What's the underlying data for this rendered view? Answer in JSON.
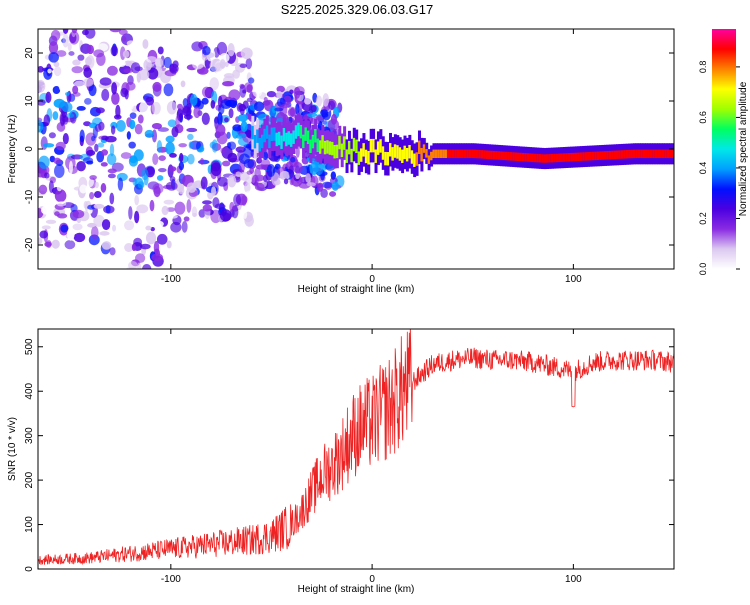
{
  "title": "S225.2025.329.06.03.G17",
  "chart_data": [
    {
      "type": "heatmap",
      "xlabel": "Height of straight line (km)",
      "ylabel": "Frequency (Hz)",
      "xlim": [
        -166,
        150
      ],
      "ylim": [
        -25,
        25
      ],
      "xticks": [
        -100,
        0,
        100
      ],
      "yticks": [
        -20,
        -10,
        0,
        10,
        20
      ],
      "xtick_labels": [
        "-100",
        "0",
        "100"
      ],
      "ytick_labels": [
        "-20",
        "-10",
        "0",
        "10",
        "20"
      ],
      "colorbar": {
        "label": "Normalized spectral amplitude",
        "range": [
          0,
          0.95
        ],
        "ticks": [
          0.0,
          0.2,
          0.4,
          0.6,
          0.8
        ],
        "tick_labels": [
          "0.0",
          "0.2",
          "0.4",
          "0.6",
          "0.8"
        ],
        "colors": [
          "#ffffff",
          "#dcc8f0",
          "#8a2be2",
          "#4b00e0",
          "#0010ff",
          "#00a0ff",
          "#00e8e8",
          "#00ff60",
          "#a0ff00",
          "#ffff00",
          "#ff8000",
          "#ff0000",
          "#ff00a0"
        ]
      },
      "description_points": [
        {
          "x": -140,
          "y": 5,
          "amp": 0.15
        },
        {
          "x": -110,
          "y": -3,
          "amp": 0.35
        },
        {
          "x": -85,
          "y": 4,
          "amp": 0.35
        },
        {
          "x": -55,
          "y": 2,
          "amp": 0.4
        },
        {
          "x": -38,
          "y": 3,
          "amp": 0.5
        },
        {
          "x": -20,
          "y": 0,
          "amp": 0.65
        },
        {
          "x": 10,
          "y": -1,
          "amp": 0.7
        },
        {
          "x": 50,
          "y": -1,
          "amp": 0.9
        },
        {
          "x": 85,
          "y": -2,
          "amp": 0.9
        },
        {
          "x": 130,
          "y": -1,
          "amp": 0.9
        }
      ]
    },
    {
      "type": "line",
      "xlabel": "Height of straight line (km)",
      "ylabel": "SNR (10 * v/v)",
      "xlim": [
        -166,
        150
      ],
      "ylim": [
        0,
        540
      ],
      "xticks": [
        -100,
        0,
        100
      ],
      "yticks": [
        0,
        100,
        200,
        300,
        400,
        500
      ],
      "xtick_labels": [
        "-100",
        "0",
        "100"
      ],
      "ytick_labels": [
        "0",
        "100",
        "200",
        "300",
        "400",
        "500"
      ],
      "color": "#ee2222",
      "trend": {
        "x": [
          -166,
          -140,
          -120,
          -100,
          -80,
          -60,
          -50,
          -40,
          -35,
          -30,
          -25,
          -20,
          -15,
          -10,
          -5,
          0,
          5,
          10,
          15,
          20,
          25,
          30,
          40,
          50,
          60,
          70,
          80,
          90,
          95,
          100,
          110,
          120,
          130,
          140,
          150
        ],
        "y": [
          20,
          25,
          35,
          45,
          55,
          65,
          75,
          100,
          130,
          170,
          210,
          230,
          260,
          300,
          320,
          330,
          350,
          370,
          400,
          420,
          440,
          460,
          470,
          475,
          470,
          470,
          465,
          455,
          450,
          445,
          465,
          470,
          470,
          470,
          465
        ]
      }
    }
  ]
}
